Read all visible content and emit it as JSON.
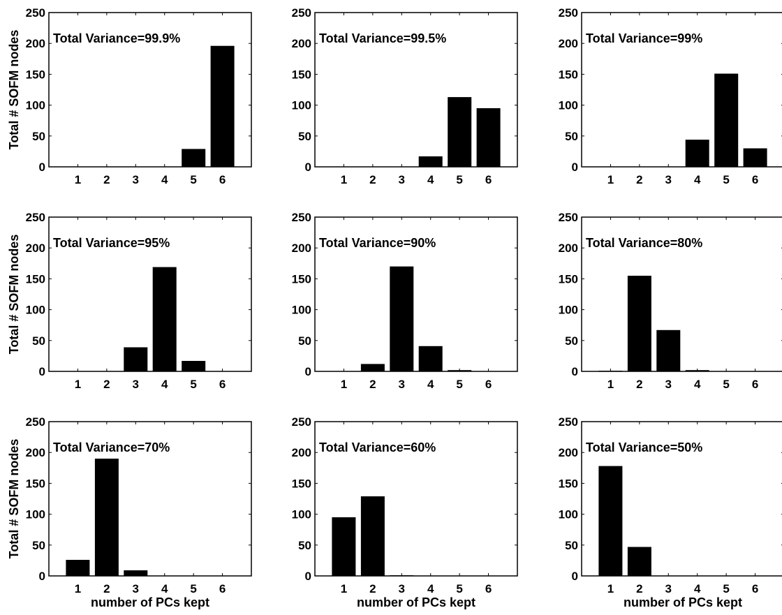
{
  "figure": {
    "bar_color": "#000000",
    "background": "#ffffff"
  },
  "chart_data": [
    {
      "type": "bar",
      "annotation": "Total Variance=99.9%",
      "categories": [
        "1",
        "2",
        "3",
        "4",
        "5",
        "6"
      ],
      "values": [
        0,
        0,
        0,
        0,
        29,
        196
      ],
      "ylim": [
        0,
        250
      ],
      "yticks": [
        0,
        50,
        100,
        150,
        200,
        250
      ],
      "ylabel": "Total # SOFM nodes",
      "xlabel": ""
    },
    {
      "type": "bar",
      "annotation": "Total Variance=99.5%",
      "categories": [
        "1",
        "2",
        "3",
        "4",
        "5",
        "6"
      ],
      "values": [
        0,
        0,
        0,
        17,
        113,
        95
      ],
      "ylim": [
        0,
        250
      ],
      "yticks": [
        0,
        50,
        100,
        150,
        200,
        250
      ],
      "ylabel": "",
      "xlabel": ""
    },
    {
      "type": "bar",
      "annotation": "Total Variance=99%",
      "categories": [
        "1",
        "2",
        "3",
        "4",
        "5",
        "6"
      ],
      "values": [
        0,
        0,
        0,
        44,
        151,
        30
      ],
      "ylim": [
        0,
        250
      ],
      "yticks": [
        0,
        50,
        100,
        150,
        200,
        250
      ],
      "ylabel": "",
      "xlabel": ""
    },
    {
      "type": "bar",
      "annotation": "Total Variance=95%",
      "categories": [
        "1",
        "2",
        "3",
        "4",
        "5",
        "6"
      ],
      "values": [
        0,
        0,
        39,
        169,
        17,
        0
      ],
      "ylim": [
        0,
        250
      ],
      "yticks": [
        0,
        50,
        100,
        150,
        200,
        250
      ],
      "ylabel": "Total # SOFM nodes",
      "xlabel": ""
    },
    {
      "type": "bar",
      "annotation": "Total Variance=90%",
      "categories": [
        "1",
        "2",
        "3",
        "4",
        "5",
        "6"
      ],
      "values": [
        0,
        12,
        170,
        41,
        2,
        0
      ],
      "ylim": [
        0,
        250
      ],
      "yticks": [
        0,
        50,
        100,
        150,
        200,
        250
      ],
      "ylabel": "",
      "xlabel": ""
    },
    {
      "type": "bar",
      "annotation": "Total Variance=80%",
      "categories": [
        "1",
        "2",
        "3",
        "4",
        "5",
        "6"
      ],
      "values": [
        1,
        155,
        67,
        2,
        0,
        0
      ],
      "ylim": [
        0,
        250
      ],
      "yticks": [
        0,
        50,
        100,
        150,
        200,
        250
      ],
      "ylabel": "",
      "xlabel": ""
    },
    {
      "type": "bar",
      "annotation": "Total Variance=70%",
      "categories": [
        "1",
        "2",
        "3",
        "4",
        "5",
        "6"
      ],
      "values": [
        26,
        190,
        9,
        0,
        0,
        0
      ],
      "ylim": [
        0,
        250
      ],
      "yticks": [
        0,
        50,
        100,
        150,
        200,
        250
      ],
      "ylabel": "Total # SOFM nodes",
      "xlabel": "number of PCs kept"
    },
    {
      "type": "bar",
      "annotation": "Total Variance=60%",
      "categories": [
        "1",
        "2",
        "3",
        "4",
        "5",
        "6"
      ],
      "values": [
        95,
        129,
        1,
        0,
        0,
        0
      ],
      "ylim": [
        0,
        250
      ],
      "yticks": [
        0,
        50,
        100,
        150,
        200,
        250
      ],
      "ylabel": "",
      "xlabel": "number of PCs kept"
    },
    {
      "type": "bar",
      "annotation": "Total Variance=50%",
      "categories": [
        "1",
        "2",
        "3",
        "4",
        "5",
        "6"
      ],
      "values": [
        178,
        47,
        0,
        0,
        0,
        0
      ],
      "ylim": [
        0,
        250
      ],
      "yticks": [
        0,
        50,
        100,
        150,
        200,
        250
      ],
      "ylabel": "",
      "xlabel": "number of PCs kept"
    }
  ]
}
